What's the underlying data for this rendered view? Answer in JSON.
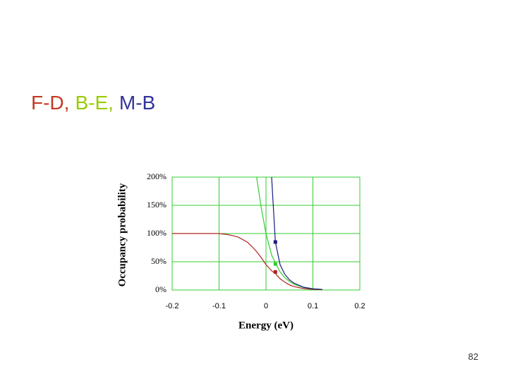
{
  "slide": {
    "title_parts": [
      {
        "text": "F-D,",
        "color": "#c23b22"
      },
      {
        "text": "B-E,",
        "color": "#99cc00"
      },
      {
        "text": "M-B",
        "color": "#333399"
      }
    ],
    "page_number": "82"
  },
  "chart_data": {
    "type": "line",
    "x_label": "Energy (eV)",
    "y_label": "Occupancy probability",
    "x": [
      -0.2,
      -0.15,
      -0.1,
      -0.08,
      -0.06,
      -0.04,
      -0.03,
      -0.02,
      -0.01,
      0,
      0.012,
      0.02,
      0.03,
      0.04,
      0.05,
      0.06,
      0.08,
      0.1,
      0.12
    ],
    "series": [
      {
        "color": "#b22222",
        "values": [
          100,
          100,
          100,
          98,
          94,
          85,
          77,
          68,
          57,
          45,
          34,
          29,
          20,
          14,
          9,
          6,
          2.5,
          1,
          0.4
        ],
        "marker": {
          "x": 0.02,
          "y": 32
        }
      },
      {
        "color": "#33cc33",
        "values": [
          null,
          null,
          null,
          null,
          null,
          null,
          null,
          200,
          145,
          100,
          62,
          48,
          32,
          22,
          15,
          10,
          4.5,
          2,
          1
        ],
        "marker": {
          "x": 0.02,
          "y": 46
        }
      },
      {
        "color": "#1a1a80",
        "values": [
          null,
          null,
          null,
          null,
          null,
          null,
          null,
          null,
          null,
          null,
          200,
          85,
          45,
          28,
          18,
          12,
          5,
          2,
          1
        ],
        "marker": {
          "x": 0.02,
          "y": 85
        }
      }
    ],
    "xlim": [
      -0.2,
      0.2
    ],
    "xticks": [
      -0.2,
      -0.1,
      0,
      0.1,
      0.2
    ],
    "ylim": [
      0,
      200
    ],
    "yticks": [
      {
        "value": 0,
        "label": "0%"
      },
      {
        "value": 50,
        "label": "50%"
      },
      {
        "value": 100,
        "label": "100%"
      },
      {
        "value": 150,
        "label": "150%"
      },
      {
        "value": 200,
        "label": "200%"
      }
    ],
    "grid": true,
    "grid_color": "#33cc33"
  }
}
